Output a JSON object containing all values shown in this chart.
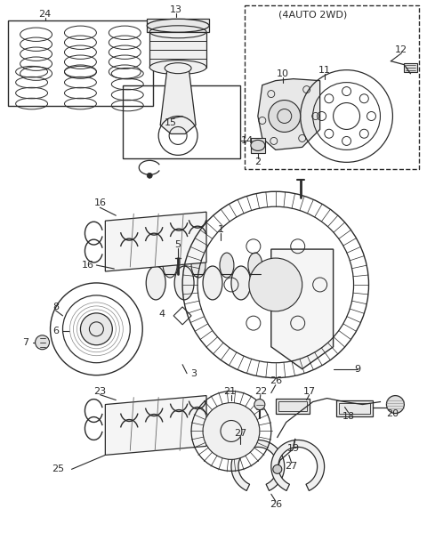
{
  "bg_color": "#ffffff",
  "line_color": "#2a2a2a",
  "fig_width": 4.8,
  "fig_height": 6.08,
  "dpi": 100
}
